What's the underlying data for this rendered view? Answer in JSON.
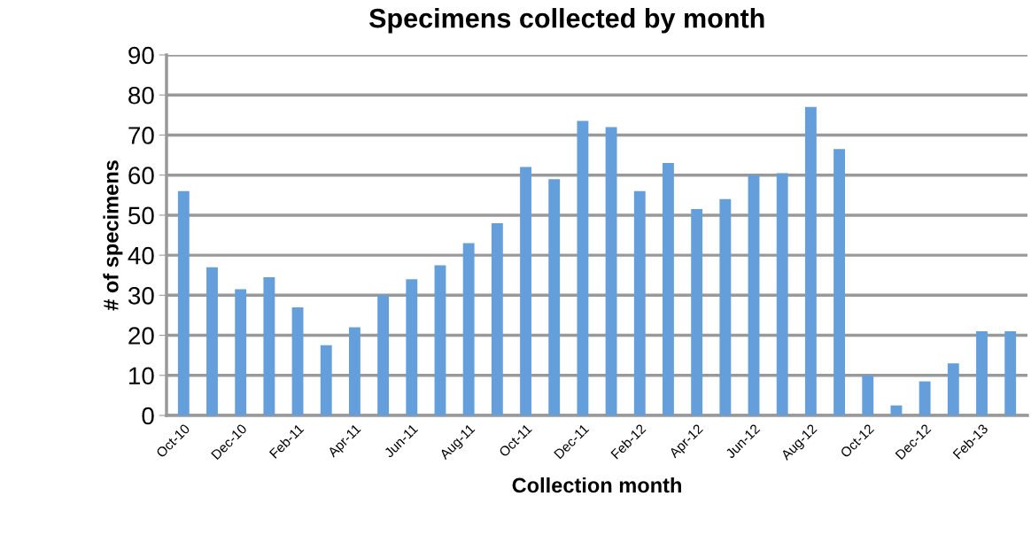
{
  "chart_data": {
    "type": "bar",
    "title": "Specimens collected by month",
    "xlabel": "Collection month",
    "ylabel": "# of specimens",
    "categories": [
      "Oct-10",
      null,
      "Dec-10",
      null,
      "Feb-11",
      null,
      "Apr-11",
      null,
      "Jun-11",
      null,
      "Aug-11",
      null,
      "Oct-11",
      null,
      "Dec-11",
      null,
      "Feb-12",
      null,
      "Apr-12",
      null,
      "Jun-12",
      null,
      "Aug-12",
      null,
      "Oct-12",
      null,
      "Dec-12",
      null,
      "Feb-13",
      null
    ],
    "values": [
      56,
      37,
      31.5,
      34.5,
      27,
      17.5,
      22,
      30,
      34,
      37.5,
      43,
      48,
      62,
      59,
      73.5,
      72,
      56,
      63,
      51.5,
      54,
      60,
      60.5,
      77,
      66.5,
      10,
      2.5,
      8.5,
      13,
      21,
      21
    ],
    "color": "#659fdb",
    "ylim": [
      0,
      90
    ],
    "yticks": [
      0,
      10,
      20,
      30,
      40,
      50,
      60,
      70,
      80,
      90
    ],
    "grid": "y"
  }
}
